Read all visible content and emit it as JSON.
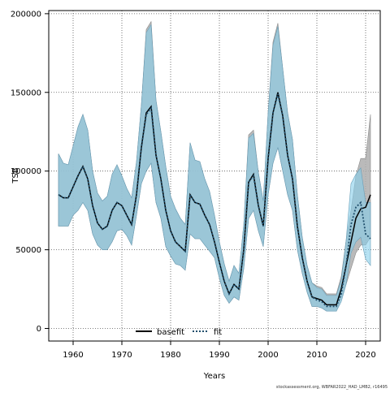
{
  "chart_data": {
    "type": "line",
    "xlabel": "Years",
    "ylabel": "TSB",
    "xlim": [
      1955,
      2023
    ],
    "ylim": [
      -8000,
      202000
    ],
    "x_ticks": [
      1960,
      1970,
      1980,
      1990,
      2000,
      2010,
      2020
    ],
    "y_ticks": [
      0,
      50000,
      100000,
      150000,
      200000
    ],
    "x_tick_labels": [
      "1960",
      "1970",
      "1980",
      "1990",
      "2000",
      "2010",
      "2020"
    ],
    "y_tick_labels": [
      "0",
      "50000",
      "100000",
      "150000",
      "200000"
    ],
    "grid": true,
    "legend_position": "bottom-center",
    "footnote": "stockassessment.org, WBFAR2022_HAD_LMB2, r16495",
    "colors": {
      "basefit_band": "#aeaeae",
      "fit_band": "#87ceeb",
      "overlap": "#9ec0d2",
      "basefit_line": "#000000",
      "fit_line": "#1f4e6b"
    },
    "series": [
      {
        "name": "basefit",
        "x": [
          1957,
          1958,
          1959,
          1960,
          1961,
          1962,
          1963,
          1964,
          1965,
          1966,
          1967,
          1968,
          1969,
          1970,
          1971,
          1972,
          1973,
          1974,
          1975,
          1976,
          1977,
          1978,
          1979,
          1980,
          1981,
          1982,
          1983,
          1984,
          1985,
          1986,
          1987,
          1988,
          1989,
          1990,
          1991,
          1992,
          1993,
          1994,
          1995,
          1996,
          1997,
          1998,
          1999,
          2000,
          2001,
          2002,
          2003,
          2004,
          2005,
          2006,
          2007,
          2008,
          2009,
          2010,
          2011,
          2012,
          2013,
          2014,
          2015,
          2016,
          2017,
          2018,
          2019,
          2020,
          2021
        ],
        "values": [
          85000,
          83000,
          83000,
          90000,
          97000,
          103000,
          95000,
          78000,
          67000,
          63000,
          65000,
          75000,
          80000,
          78000,
          72000,
          66000,
          85000,
          115000,
          137000,
          141000,
          110000,
          95000,
          75000,
          62000,
          55000,
          52000,
          49000,
          85000,
          80000,
          79000,
          72000,
          66000,
          55000,
          42000,
          30000,
          22000,
          28000,
          25000,
          50000,
          93000,
          98000,
          78000,
          65000,
          108000,
          137000,
          150000,
          135000,
          110000,
          95000,
          65000,
          45000,
          30000,
          20000,
          19000,
          18000,
          15000,
          15000,
          15000,
          25000,
          40000,
          55000,
          70000,
          76000,
          77000,
          85000
        ],
        "lower": [
          65000,
          65000,
          65000,
          72000,
          75000,
          80000,
          75000,
          60000,
          53000,
          50000,
          50000,
          55000,
          62000,
          63000,
          59000,
          53000,
          72000,
          92000,
          100000,
          105000,
          80000,
          70000,
          52000,
          46000,
          41000,
          40000,
          37000,
          60000,
          57000,
          57000,
          53000,
          49000,
          45000,
          32000,
          21000,
          16000,
          20000,
          18000,
          38000,
          70000,
          75000,
          62000,
          52000,
          85000,
          105000,
          115000,
          100000,
          85000,
          75000,
          50000,
          35000,
          23000,
          14000,
          14000,
          13000,
          11000,
          11000,
          11000,
          19000,
          28000,
          38000,
          48000,
          53000,
          53000,
          58000
        ],
        "upper": [
          111000,
          105000,
          104000,
          116000,
          128000,
          136000,
          126000,
          100000,
          86000,
          81000,
          84000,
          98000,
          104000,
          97000,
          89000,
          83000,
          106000,
          142000,
          190000,
          195000,
          145000,
          125000,
          103000,
          84000,
          76000,
          70000,
          66000,
          118000,
          107000,
          106000,
          95000,
          87000,
          72000,
          55000,
          41000,
          30000,
          40000,
          35000,
          66000,
          123000,
          126000,
          99000,
          81000,
          137000,
          182000,
          194000,
          165000,
          137000,
          120000,
          85000,
          58000,
          40000,
          29000,
          27000,
          26000,
          22000,
          22000,
          22000,
          33000,
          56000,
          75000,
          97000,
          108000,
          108000,
          136000
        ]
      },
      {
        "name": "fit",
        "x": [
          1957,
          1958,
          1959,
          1960,
          1961,
          1962,
          1963,
          1964,
          1965,
          1966,
          1967,
          1968,
          1969,
          1970,
          1971,
          1972,
          1973,
          1974,
          1975,
          1976,
          1977,
          1978,
          1979,
          1980,
          1981,
          1982,
          1983,
          1984,
          1985,
          1986,
          1987,
          1988,
          1989,
          1990,
          1991,
          1992,
          1993,
          1994,
          1995,
          1996,
          1997,
          1998,
          1999,
          2000,
          2001,
          2002,
          2003,
          2004,
          2005,
          2006,
          2007,
          2008,
          2009,
          2010,
          2011,
          2012,
          2013,
          2014,
          2015,
          2016,
          2017,
          2018,
          2019,
          2020,
          2021
        ],
        "values": [
          85000,
          83000,
          83000,
          90000,
          97000,
          103000,
          95000,
          78000,
          67000,
          63000,
          65000,
          75000,
          80000,
          78000,
          72000,
          66000,
          85000,
          115000,
          136000,
          140000,
          110000,
          95000,
          75000,
          62000,
          55000,
          52000,
          49000,
          85000,
          80000,
          79000,
          72000,
          66000,
          55000,
          42000,
          30000,
          22000,
          28000,
          25000,
          50000,
          93000,
          97000,
          78000,
          65000,
          108000,
          137000,
          149000,
          135000,
          110000,
          95000,
          65000,
          45000,
          30000,
          20000,
          18000,
          17000,
          14000,
          14000,
          14000,
          22000,
          40000,
          66000,
          77000,
          80000,
          60000,
          57000
        ],
        "lower": [
          65000,
          65000,
          65000,
          72000,
          75000,
          80000,
          75000,
          60000,
          53000,
          50000,
          50000,
          55000,
          62000,
          63000,
          59000,
          53000,
          72000,
          92000,
          100000,
          105000,
          80000,
          70000,
          52000,
          46000,
          41000,
          40000,
          37000,
          60000,
          57000,
          57000,
          53000,
          49000,
          45000,
          32000,
          21000,
          16000,
          20000,
          18000,
          38000,
          70000,
          75000,
          62000,
          52000,
          85000,
          105000,
          115000,
          100000,
          85000,
          75000,
          50000,
          35000,
          23000,
          14000,
          14000,
          13000,
          11000,
          11000,
          11000,
          17000,
          28000,
          48000,
          55000,
          58000,
          44000,
          40000
        ],
        "upper": [
          111000,
          105000,
          104000,
          116000,
          128000,
          136000,
          126000,
          100000,
          86000,
          81000,
          84000,
          98000,
          104000,
          97000,
          89000,
          83000,
          106000,
          142000,
          188000,
          193000,
          145000,
          125000,
          103000,
          84000,
          76000,
          70000,
          66000,
          118000,
          107000,
          106000,
          95000,
          87000,
          72000,
          55000,
          41000,
          30000,
          40000,
          35000,
          66000,
          121000,
          124000,
          99000,
          81000,
          137000,
          180000,
          192000,
          165000,
          137000,
          120000,
          85000,
          58000,
          40000,
          29000,
          26000,
          25000,
          21000,
          21000,
          21000,
          31000,
          56000,
          92000,
          98000,
          102000,
          80000,
          80000
        ]
      }
    ]
  }
}
